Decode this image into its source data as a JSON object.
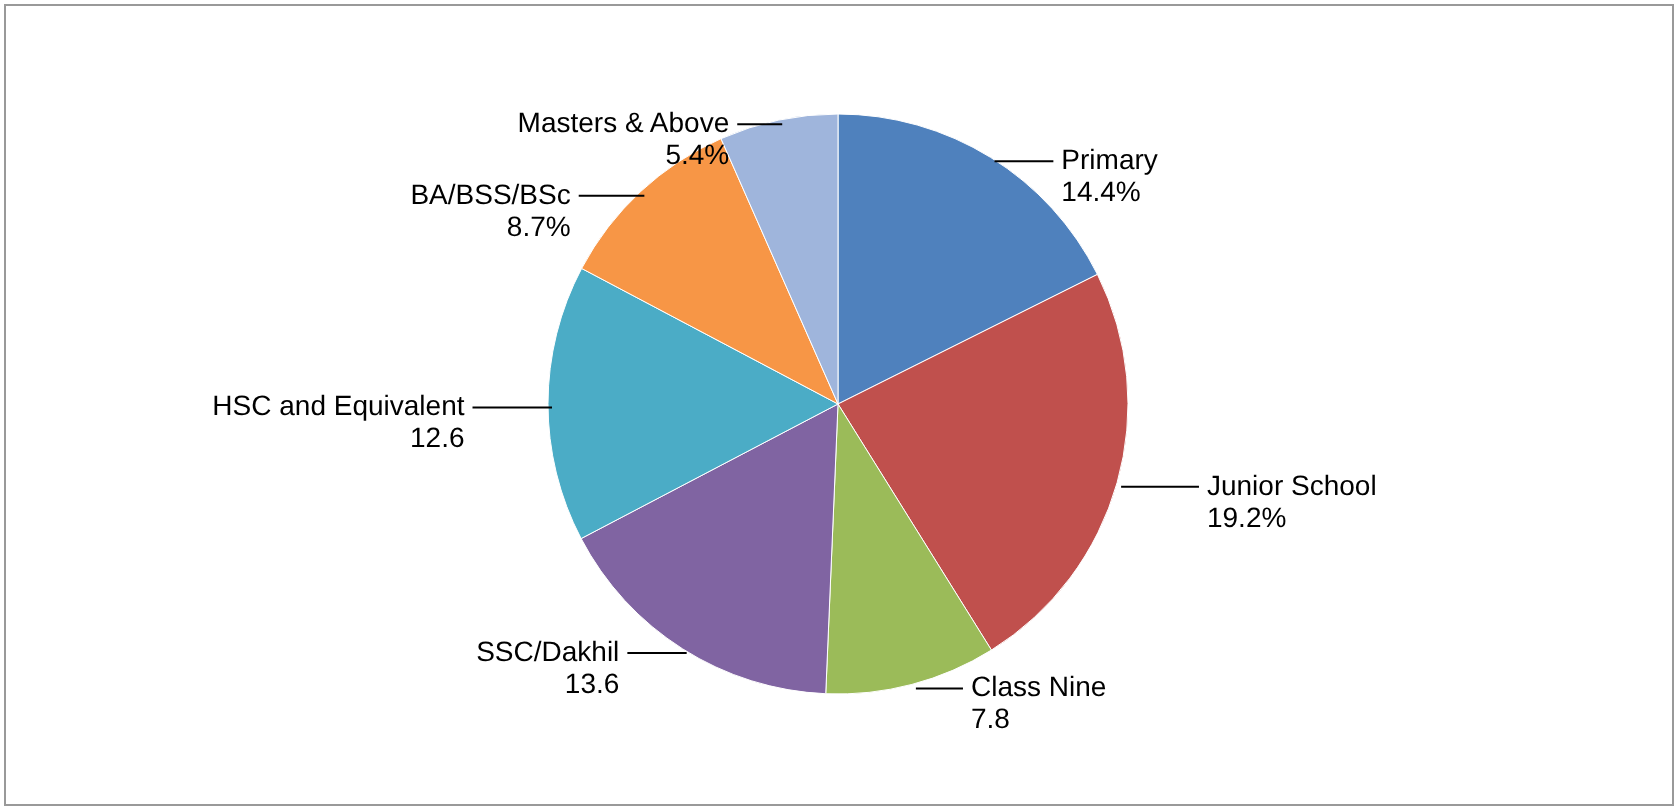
{
  "chart_data": {
    "type": "pie",
    "categories": [
      "Primary",
      "Junior School",
      "Class Nine",
      "SSC/Dakhil",
      "HSC and Equivalent",
      "BA/BSS/BSc",
      "Masters & Above"
    ],
    "values": [
      14.4,
      19.2,
      7.8,
      13.6,
      12.6,
      8.7,
      5.4
    ],
    "value_labels": [
      "14.4%",
      "19.2%",
      "7.8",
      "13.6",
      "12.6",
      "8.7%",
      "5.4%"
    ],
    "colors": [
      "#4f81bd",
      "#c0504d",
      "#9bbb59",
      "#8064a2",
      "#4bacc6",
      "#f79646",
      "#9fb5dc"
    ]
  }
}
